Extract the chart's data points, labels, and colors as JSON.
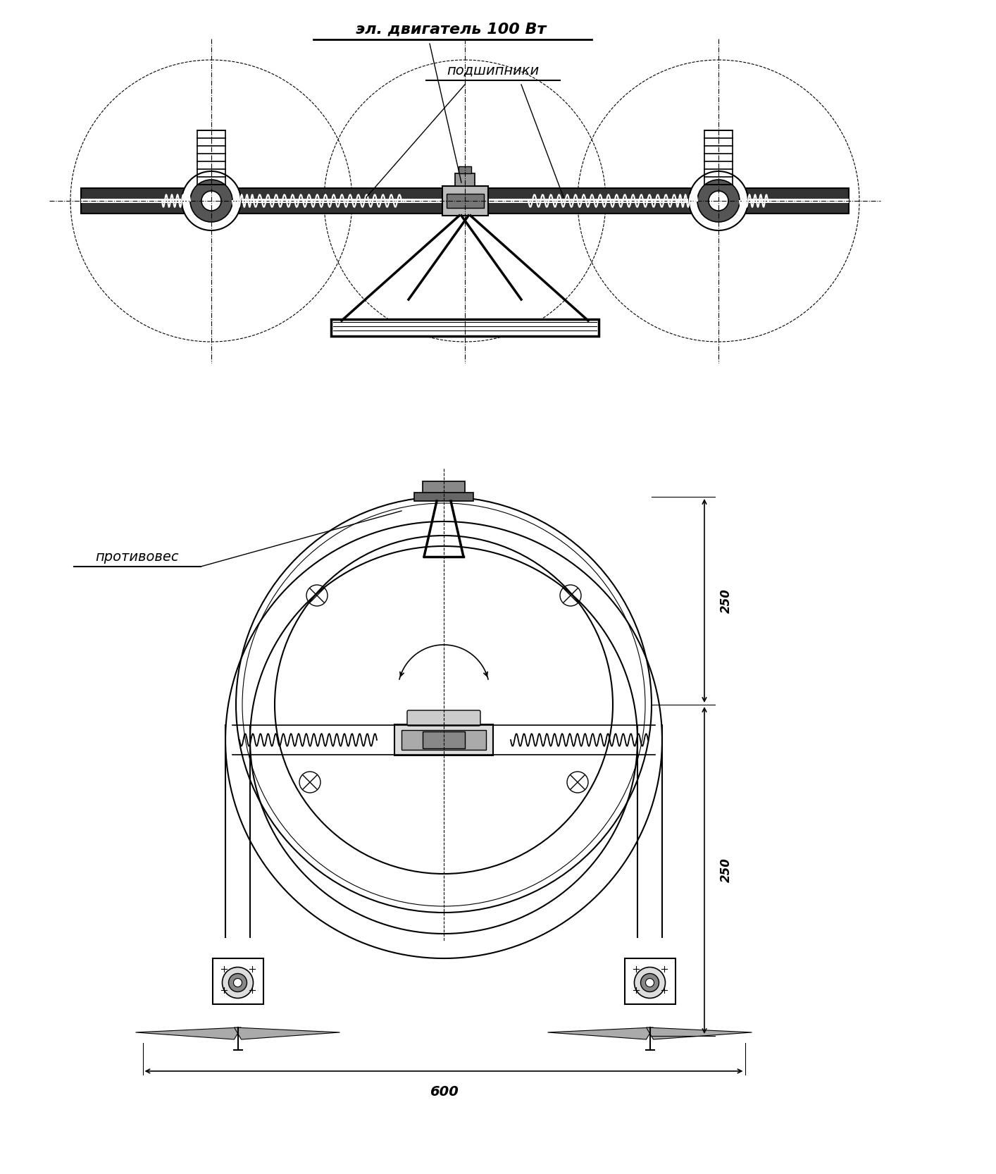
{
  "bg_color": "#ffffff",
  "line_color": "#000000",
  "fig_width": 14.14,
  "fig_height": 16.66,
  "label_motor": "эл. двигатель 100 Вт",
  "label_bearings": "подшипники",
  "label_counterweight": "противовес",
  "dim_250_top": "250",
  "dim_250_bot": "250",
  "dim_600": "600",
  "font_size_labels": 13,
  "font_size_dims": 12
}
